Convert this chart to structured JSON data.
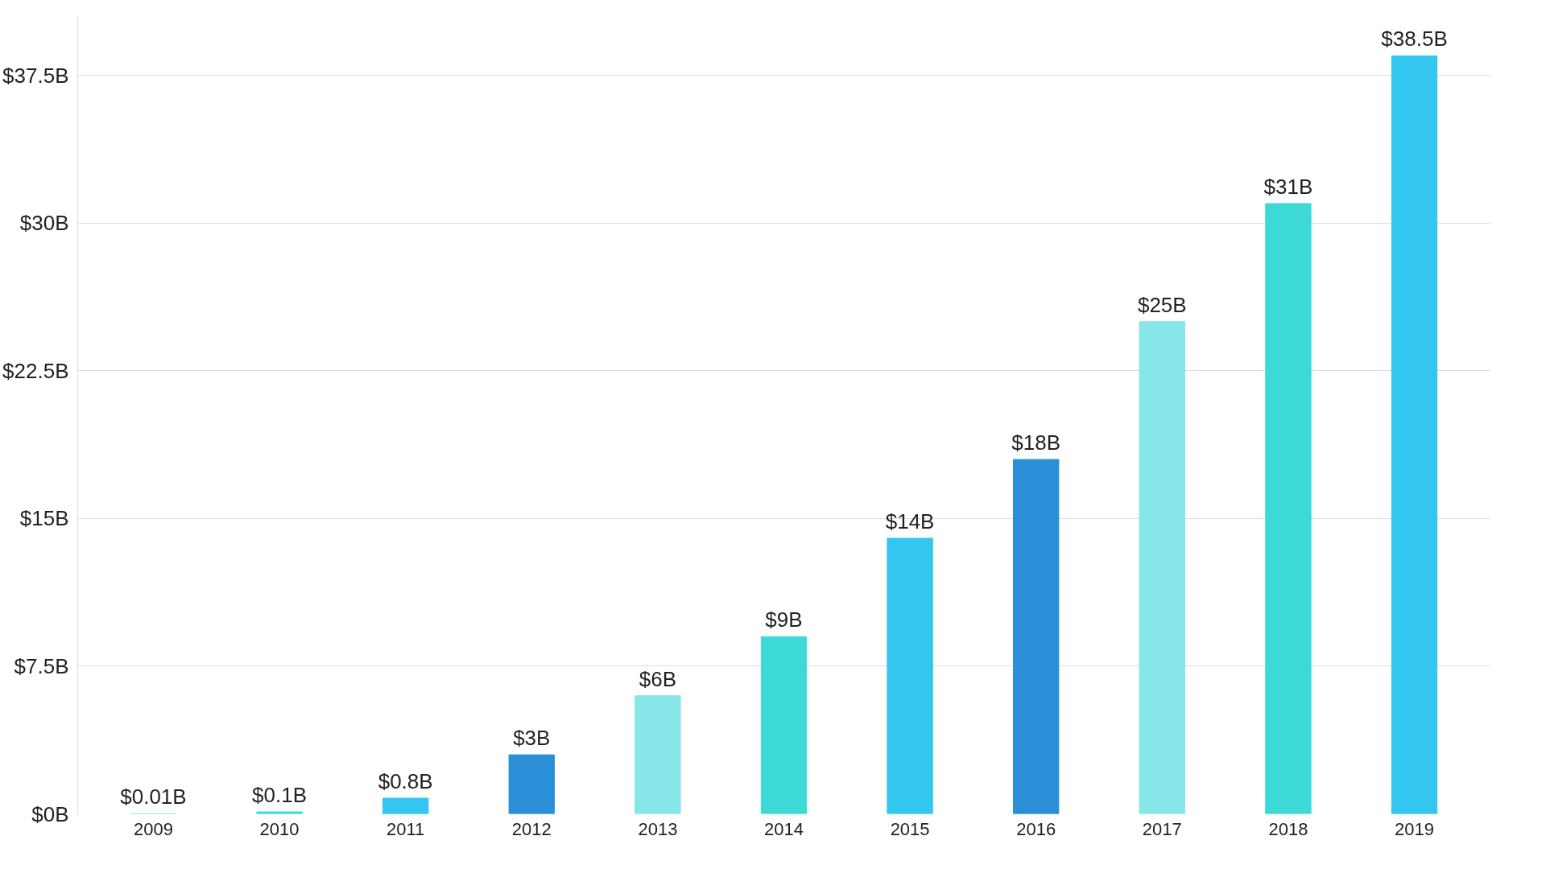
{
  "chart_data": {
    "type": "bar",
    "categories": [
      "2009",
      "2010",
      "2011",
      "2012",
      "2013",
      "2014",
      "2015",
      "2016",
      "2017",
      "2018",
      "2019"
    ],
    "values": [
      0.01,
      0.1,
      0.8,
      3,
      6,
      9,
      14,
      18,
      25,
      31,
      38.5
    ],
    "colors": [
      "#86e6e8",
      "#3dd9d6",
      "#33c6ee",
      "#2b8fd8",
      "#86e6e8",
      "#3dd9d6",
      "#33c6ee",
      "#2b8fd8",
      "#86e6e8",
      "#3dd9d6",
      "#33c6ee"
    ],
    "value_labels": [
      "$0.01B",
      "$0.1B",
      "$0.8B",
      "$3B",
      "$6B",
      "$9B",
      "$14B",
      "$18B",
      "$25B",
      "$31B",
      "$38.5B"
    ],
    "ylim": [
      0,
      40.5
    ],
    "yticks": [
      {
        "value": 0,
        "label": "$0B"
      },
      {
        "value": 7.5,
        "label": "$7.5B"
      },
      {
        "value": 15,
        "label": "$15B"
      },
      {
        "value": 22.5,
        "label": "$22.5B"
      },
      {
        "value": 30,
        "label": "$30B"
      },
      {
        "value": 37.5,
        "label": "$37.5B"
      }
    ],
    "grid": "y"
  }
}
